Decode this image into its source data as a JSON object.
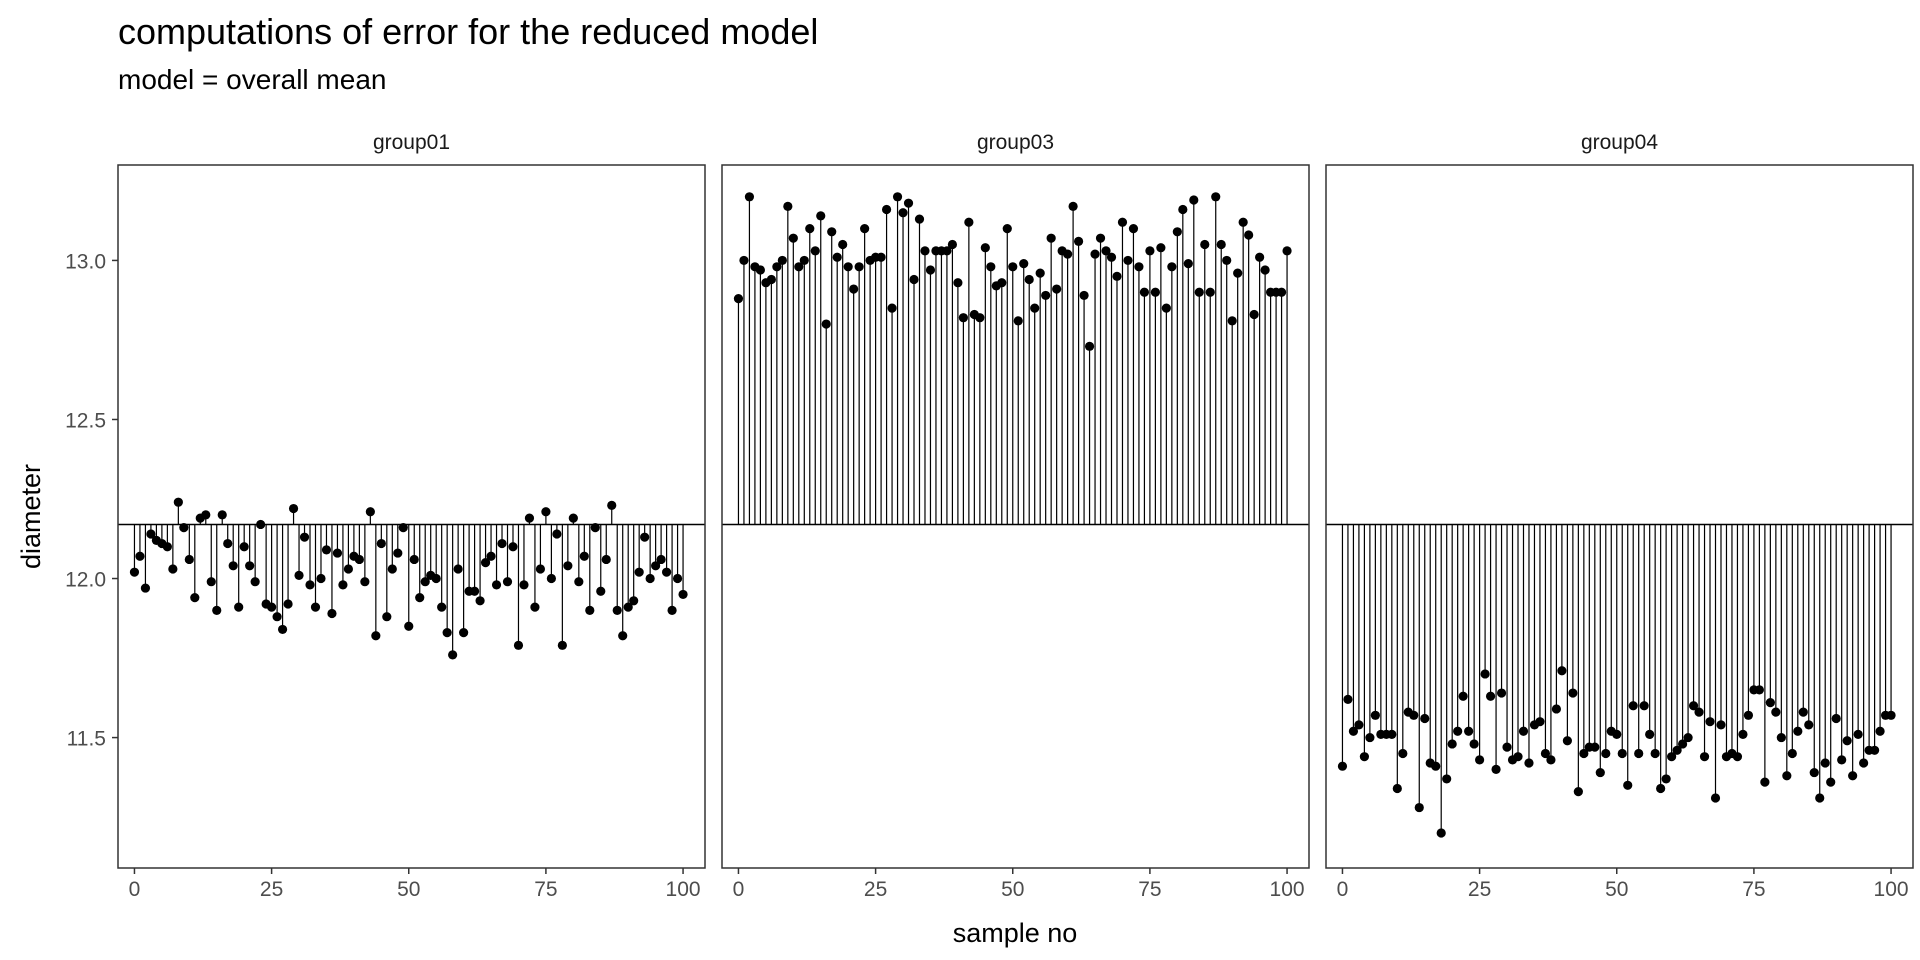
{
  "chart_data": {
    "type": "scatter",
    "title": "computations of error for the reduced model",
    "subtitle": "model = overall mean",
    "xlabel": "sample no",
    "ylabel": "diameter",
    "xlim": [
      -3,
      104
    ],
    "ylim": [
      11.09,
      13.3
    ],
    "x_ticks": [
      0,
      25,
      50,
      75,
      100
    ],
    "y_ticks": [
      11.5,
      12.0,
      12.5,
      13.0
    ],
    "y_tick_labels": [
      "11.5",
      "12.0",
      "12.5",
      "13.0"
    ],
    "reference_line": 12.17,
    "grid": false,
    "facets": [
      {
        "name": "group01",
        "values": [
          12.02,
          12.07,
          11.97,
          12.14,
          12.12,
          12.11,
          12.1,
          12.03,
          12.24,
          12.16,
          12.06,
          11.94,
          12.19,
          12.2,
          11.99,
          11.9,
          12.2,
          12.11,
          12.04,
          11.91,
          12.1,
          12.04,
          11.99,
          12.17,
          11.92,
          11.91,
          11.88,
          11.84,
          11.92,
          12.22,
          12.01,
          12.13,
          11.98,
          11.91,
          12.0,
          12.09,
          11.89,
          12.08,
          11.98,
          12.03,
          12.07,
          12.06,
          11.99,
          12.21,
          11.82,
          12.11,
          11.88,
          12.03,
          12.08,
          12.16,
          11.85,
          12.06,
          11.94,
          11.99,
          12.01,
          12.0,
          11.91,
          11.83,
          11.76,
          12.03,
          11.83,
          11.96,
          11.96,
          11.93,
          12.05,
          12.07,
          11.98,
          12.11,
          11.99,
          12.1,
          11.79,
          11.98,
          12.19,
          11.91,
          12.03,
          12.21,
          12.0,
          12.14,
          11.79,
          12.04,
          12.19,
          11.99,
          12.07,
          11.9,
          12.16,
          11.96,
          12.06,
          12.23,
          11.9,
          11.82,
          11.91,
          11.93,
          12.02,
          12.13,
          12.0,
          12.04,
          12.06,
          12.02,
          11.9,
          12.0,
          11.95
        ]
      },
      {
        "name": "group03",
        "values": [
          12.88,
          13.0,
          13.2,
          12.98,
          12.97,
          12.93,
          12.94,
          12.98,
          13.0,
          13.17,
          13.07,
          12.98,
          13.0,
          13.1,
          13.03,
          13.14,
          12.8,
          13.09,
          13.01,
          13.05,
          12.98,
          12.91,
          12.98,
          13.1,
          13.0,
          13.01,
          13.01,
          13.16,
          12.85,
          13.2,
          13.15,
          13.18,
          12.94,
          13.13,
          13.03,
          12.97,
          13.03,
          13.03,
          13.03,
          13.05,
          12.93,
          12.82,
          13.12,
          12.83,
          12.82,
          13.04,
          12.98,
          12.92,
          12.93,
          13.1,
          12.98,
          12.81,
          12.99,
          12.94,
          12.85,
          12.96,
          12.89,
          13.07,
          12.91,
          13.03,
          13.02,
          13.17,
          13.06,
          12.89,
          12.73,
          13.02,
          13.07,
          13.03,
          13.01,
          12.95,
          13.12,
          13.0,
          13.1,
          12.98,
          12.9,
          13.03,
          12.9,
          13.04,
          12.85,
          12.98,
          13.09,
          13.16,
          12.99,
          13.19,
          12.9,
          13.05,
          12.9,
          13.2,
          13.05,
          13.0,
          12.81,
          12.96,
          13.12,
          13.08,
          12.83,
          13.01,
          12.97,
          12.9,
          12.9,
          12.9,
          13.03
        ]
      },
      {
        "name": "group04",
        "values": [
          11.41,
          11.62,
          11.52,
          11.54,
          11.44,
          11.5,
          11.57,
          11.51,
          11.51,
          11.51,
          11.34,
          11.45,
          11.58,
          11.57,
          11.28,
          11.56,
          11.42,
          11.41,
          11.2,
          11.37,
          11.48,
          11.52,
          11.63,
          11.52,
          11.48,
          11.43,
          11.7,
          11.63,
          11.4,
          11.64,
          11.47,
          11.43,
          11.44,
          11.52,
          11.42,
          11.54,
          11.55,
          11.45,
          11.43,
          11.59,
          11.71,
          11.49,
          11.64,
          11.33,
          11.45,
          11.47,
          11.47,
          11.39,
          11.45,
          11.52,
          11.51,
          11.45,
          11.35,
          11.6,
          11.45,
          11.6,
          11.51,
          11.45,
          11.34,
          11.37,
          11.44,
          11.46,
          11.48,
          11.5,
          11.6,
          11.58,
          11.44,
          11.55,
          11.31,
          11.54,
          11.44,
          11.45,
          11.44,
          11.51,
          11.57,
          11.65,
          11.65,
          11.36,
          11.61,
          11.58,
          11.5,
          11.38,
          11.45,
          11.52,
          11.58,
          11.54,
          11.39,
          11.31,
          11.42,
          11.36,
          11.56,
          11.43,
          11.49,
          11.38,
          11.51,
          11.42,
          11.46,
          11.46,
          11.52,
          11.57,
          11.57
        ]
      }
    ]
  }
}
